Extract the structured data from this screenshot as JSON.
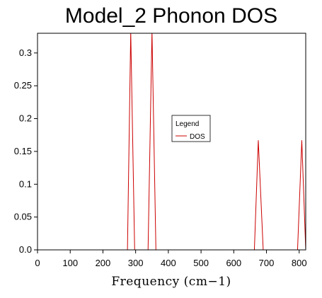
{
  "chart_data": {
    "type": "line",
    "title": "Model_2 Phonon DOS",
    "xlabel": "Frequency (cm−1)",
    "ylabel": "",
    "xlim": [
      0,
      820
    ],
    "ylim": [
      0,
      0.33
    ],
    "xticks": [
      0,
      100,
      200,
      300,
      400,
      500,
      600,
      700,
      800
    ],
    "yticks": [
      0.0,
      0.05,
      0.1,
      0.15,
      0.2,
      0.25,
      0.3
    ],
    "ytick_labels": [
      "0.0",
      "0.05",
      "0.1",
      "0.15",
      "0.2",
      "0.25",
      "0.3"
    ],
    "grid": false,
    "legend": {
      "title": "Legend",
      "placement": "center-right"
    },
    "series": [
      {
        "name": "DOS",
        "color": "#cc0000",
        "x": [
          0,
          275,
          285,
          297,
          338,
          350,
          362,
          663,
          675,
          690,
          795,
          808,
          820
        ],
        "y": [
          0,
          0,
          0.333,
          0,
          0,
          0.333,
          0,
          0,
          0.167,
          0,
          0,
          0.167,
          0
        ]
      }
    ]
  }
}
